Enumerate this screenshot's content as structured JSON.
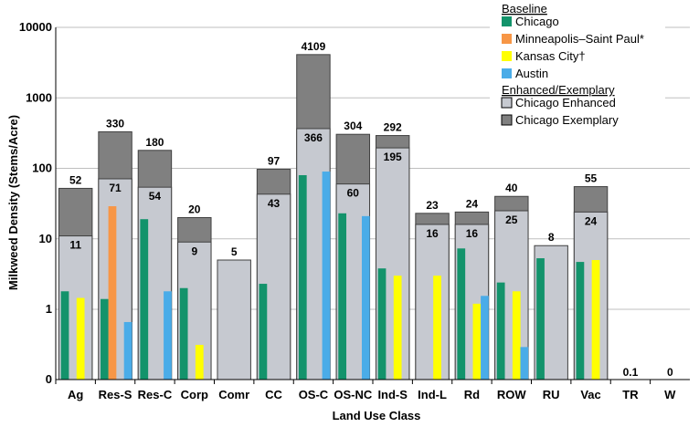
{
  "chart_data": {
    "type": "bar",
    "title": "",
    "xlabel": "Land Use Class",
    "ylabel": "Milkweed Density (Stems/Acre)",
    "yscale": "log",
    "ylim": [
      0,
      10000
    ],
    "yticks": [
      "10000",
      "1000",
      "100",
      "10",
      "1",
      "0"
    ],
    "categories": [
      "Ag",
      "Res-S",
      "Res-C",
      "Corp",
      "Comr",
      "CC",
      "OS-C",
      "OS-NC",
      "Ind-S",
      "Ind-L",
      "Rd",
      "ROW",
      "RU",
      "Vac",
      "TR",
      "W"
    ],
    "legend": {
      "baseline_heading": "Baseline",
      "enhanced_heading": "Enhanced/Exemplary",
      "entries": [
        {
          "name": "Chicago",
          "color": "#13936b"
        },
        {
          "name": "Minneapolis–Saint Paul*",
          "color": "#f79646"
        },
        {
          "name": "Kansas City†",
          "color": "#ffff00"
        },
        {
          "name": "Austin",
          "color": "#4aace8"
        },
        {
          "name": "Chicago Enhanced",
          "color": "#c6c9d0"
        },
        {
          "name": "Chicago Exemplary",
          "color": "#808080"
        }
      ]
    },
    "series": [
      {
        "name": "Chicago Exemplary",
        "values": [
          52,
          330,
          180,
          20,
          null,
          97,
          4109,
          304,
          292,
          23,
          24,
          40,
          null,
          55,
          null,
          null
        ],
        "labels": [
          "52",
          "330",
          "180",
          "20",
          "",
          "97",
          "4109",
          "304",
          "292",
          "23",
          "24",
          "40",
          "",
          "55",
          "",
          ""
        ]
      },
      {
        "name": "Chicago Enhanced",
        "values": [
          11,
          71,
          54,
          9,
          5,
          43,
          366,
          60,
          195,
          16,
          16,
          25,
          8,
          24,
          0.1,
          0
        ],
        "labels": [
          "11",
          "71",
          "54",
          "9",
          "5",
          "43",
          "366",
          "60",
          "195",
          "16",
          "16",
          "25",
          "8",
          "24",
          "0.1",
          "0"
        ]
      },
      {
        "name": "Chicago",
        "values": [
          1.8,
          1.4,
          19,
          2.0,
          null,
          2.3,
          80,
          23,
          3.8,
          null,
          7.3,
          2.4,
          5.3,
          4.7,
          null,
          null
        ]
      },
      {
        "name": "Minneapolis–Saint Paul*",
        "values": [
          null,
          29,
          null,
          null,
          null,
          null,
          null,
          null,
          null,
          null,
          null,
          null,
          null,
          null,
          null,
          null
        ]
      },
      {
        "name": "Kansas City†",
        "values": [
          1.45,
          null,
          null,
          0.24,
          null,
          null,
          null,
          null,
          3.0,
          3.0,
          1.2,
          1.8,
          null,
          5.0,
          null,
          null
        ]
      },
      {
        "name": "Austin",
        "values": [
          null,
          0.6,
          1.8,
          null,
          null,
          null,
          90,
          21,
          null,
          null,
          1.55,
          0.22,
          null,
          null,
          null,
          null
        ]
      }
    ]
  }
}
